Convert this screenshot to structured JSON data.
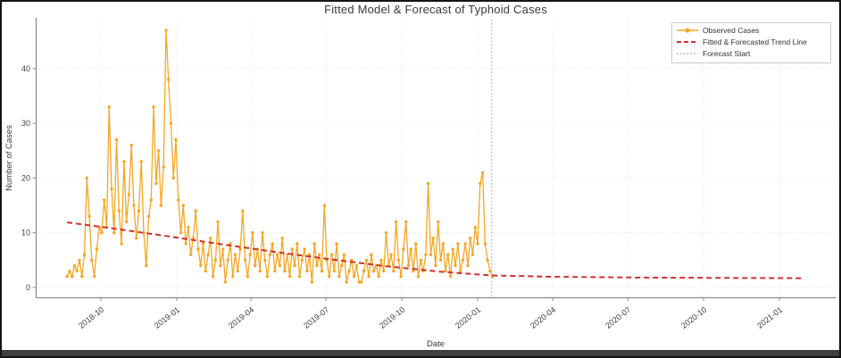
{
  "window": {
    "bottom_bar": "window-edge"
  },
  "chart_data": {
    "type": "line",
    "title": "Fitted Model & Forecast of Typhoid Cases",
    "xlabel": "Date",
    "ylabel": "Number of Cases",
    "ylim": [
      -2,
      49
    ],
    "grid": true,
    "legend_position": "upper right",
    "legend": [
      "Observed Cases",
      "Fitted & Forecasted Trend Line",
      "Forecast Start"
    ],
    "colors": {
      "observed": "#F5A623",
      "trend": "#CF3030",
      "forecast_start": "#999999",
      "grid": "#DCDCDC",
      "axis": "#8C8C8C",
      "text": "#3A3A3A"
    },
    "y_ticks": [
      0,
      10,
      20,
      30,
      40
    ],
    "x_ticks": [
      {
        "label": "2018-10",
        "date": "2018-10-01"
      },
      {
        "label": "2019-01",
        "date": "2019-01-01"
      },
      {
        "label": "2019-04",
        "date": "2019-04-01"
      },
      {
        "label": "2019-07",
        "date": "2019-07-01"
      },
      {
        "label": "2019-10",
        "date": "2019-10-01"
      },
      {
        "label": "2020-01",
        "date": "2020-01-01"
      },
      {
        "label": "2020-04",
        "date": "2020-04-01"
      },
      {
        "label": "2020-07",
        "date": "2020-07-01"
      },
      {
        "label": "2020-10",
        "date": "2020-10-01"
      },
      {
        "label": "2021-01",
        "date": "2021-01-01"
      }
    ],
    "forecast_start_date": "2020-01-18",
    "observed": {
      "start_date": "2018-08-21",
      "interval_days": 3,
      "values": [
        2,
        3,
        2,
        4,
        3,
        5,
        2,
        6,
        20,
        13,
        5,
        2,
        7,
        11,
        10,
        16,
        11,
        33,
        18,
        10,
        27,
        14,
        8,
        23,
        12,
        17,
        26,
        15,
        9,
        14,
        23,
        10,
        4,
        13,
        16,
        33,
        19,
        25,
        15,
        22,
        47,
        38,
        30,
        20,
        27,
        16,
        10,
        15,
        8,
        11,
        6,
        9,
        14,
        7,
        4,
        8,
        3,
        6,
        9,
        2,
        5,
        12,
        4,
        7,
        1,
        5,
        8,
        2,
        6,
        3,
        7,
        14,
        5,
        2,
        6,
        10,
        4,
        7,
        3,
        10,
        5,
        2,
        6,
        8,
        3,
        6,
        4,
        9,
        3,
        6,
        2,
        7,
        4,
        8,
        2,
        5,
        7,
        3,
        6,
        1,
        8,
        4,
        6,
        3,
        15,
        5,
        2,
        6,
        3,
        8,
        2,
        4,
        6,
        1,
        3,
        5,
        2,
        4,
        1,
        1,
        3,
        5,
        2,
        6,
        3,
        4,
        2,
        5,
        3,
        10,
        4,
        6,
        3,
        12,
        5,
        2,
        7,
        12,
        4,
        7,
        3,
        8,
        2,
        5,
        3,
        6,
        19,
        6,
        9,
        4,
        12,
        5,
        8,
        3,
        6,
        2,
        7,
        4,
        8,
        3,
        5,
        8,
        4,
        9,
        6,
        11,
        8,
        19,
        21,
        8,
        5,
        3,
        2
      ]
    },
    "trend": {
      "points": [
        [
          "2018-08-21",
          11.9
        ],
        [
          "2018-10-15",
          10.8
        ],
        [
          "2018-12-24",
          9.3
        ],
        [
          "2019-03-01",
          7.8
        ],
        [
          "2019-05-05",
          6.4
        ],
        [
          "2019-07-15",
          5.0
        ],
        [
          "2019-09-11",
          3.9
        ],
        [
          "2019-11-15",
          2.9
        ],
        [
          "2020-01-18",
          2.2
        ],
        [
          "2020-04-01",
          1.95
        ],
        [
          "2020-08-01",
          1.8
        ],
        [
          "2021-01-28",
          1.7
        ]
      ]
    }
  }
}
